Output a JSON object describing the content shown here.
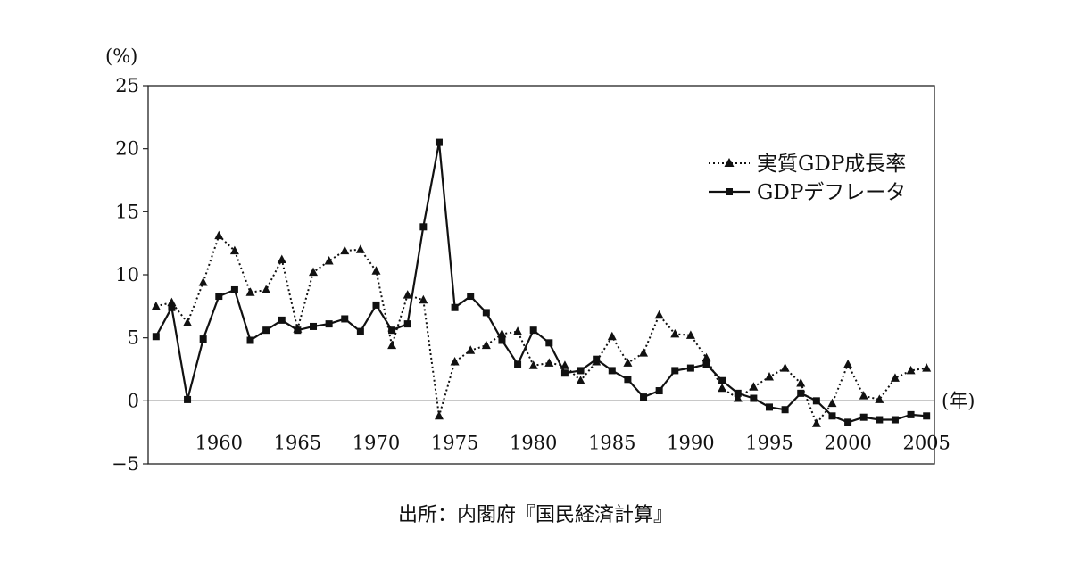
{
  "chart_data": {
    "type": "line",
    "ylabel": "(%)",
    "xlabel": "(年)",
    "ylim": [
      -5,
      25
    ],
    "xlim": [
      1955.5,
      2005.5
    ],
    "yticks": [
      25,
      20,
      15,
      10,
      5,
      0,
      -5
    ],
    "ytick_labels": [
      "25",
      "20",
      "15",
      "10",
      "5",
      "0",
      "−5"
    ],
    "xticks": [
      1960,
      1965,
      1970,
      1975,
      1980,
      1985,
      1990,
      1995,
      2000,
      2005
    ],
    "grid": false,
    "legend_position": "right",
    "source": "出所：内閣府『国民経済計算』",
    "series": [
      {
        "name": "実質GDP成長率",
        "style": "dotted",
        "marker": "triangle",
        "x": [
          1956,
          1957,
          1958,
          1959,
          1960,
          1961,
          1962,
          1963,
          1964,
          1965,
          1966,
          1967,
          1968,
          1969,
          1970,
          1971,
          1972,
          1973,
          1974,
          1975,
          1976,
          1977,
          1978,
          1979,
          1980,
          1981,
          1982,
          1983,
          1984,
          1985,
          1986,
          1987,
          1988,
          1989,
          1990,
          1991,
          1992,
          1993,
          1994,
          1995,
          1996,
          1997,
          1998,
          1999,
          2000,
          2001,
          2002,
          2003,
          2004,
          2005
        ],
        "values": [
          7.5,
          7.8,
          6.2,
          9.4,
          13.1,
          11.9,
          8.6,
          8.8,
          11.2,
          5.7,
          10.2,
          11.1,
          11.9,
          12.0,
          10.3,
          4.4,
          8.4,
          8.0,
          -1.2,
          3.1,
          4.0,
          4.4,
          5.3,
          5.5,
          2.8,
          3.0,
          2.8,
          1.6,
          3.1,
          5.1,
          3.0,
          3.8,
          6.8,
          5.3,
          5.2,
          3.4,
          1.0,
          0.2,
          1.1,
          1.9,
          2.6,
          1.4,
          -1.8,
          -0.2,
          2.9,
          0.4,
          0.1,
          1.8,
          2.4,
          2.6
        ]
      },
      {
        "name": "GDPデフレータ",
        "style": "solid",
        "marker": "square",
        "x": [
          1956,
          1957,
          1958,
          1959,
          1960,
          1961,
          1962,
          1963,
          1964,
          1965,
          1966,
          1967,
          1968,
          1969,
          1970,
          1971,
          1972,
          1973,
          1974,
          1975,
          1976,
          1977,
          1978,
          1979,
          1980,
          1981,
          1982,
          1983,
          1984,
          1985,
          1986,
          1987,
          1988,
          1989,
          1990,
          1991,
          1992,
          1993,
          1994,
          1995,
          1996,
          1997,
          1998,
          1999,
          2000,
          2001,
          2002,
          2003,
          2004,
          2005
        ],
        "values": [
          5.1,
          7.4,
          0.1,
          4.9,
          8.3,
          8.8,
          4.8,
          5.6,
          6.4,
          5.6,
          5.9,
          6.1,
          6.5,
          5.5,
          7.6,
          5.6,
          6.1,
          13.8,
          20.5,
          7.4,
          8.3,
          7.0,
          4.8,
          2.9,
          5.6,
          4.6,
          2.2,
          2.4,
          3.3,
          2.4,
          1.7,
          0.3,
          0.8,
          2.4,
          2.6,
          2.9,
          1.6,
          0.6,
          0.2,
          -0.5,
          -0.7,
          0.6,
          0.0,
          -1.2,
          -1.7,
          -1.3,
          -1.5,
          -1.5,
          -1.1,
          -1.2
        ]
      }
    ]
  }
}
